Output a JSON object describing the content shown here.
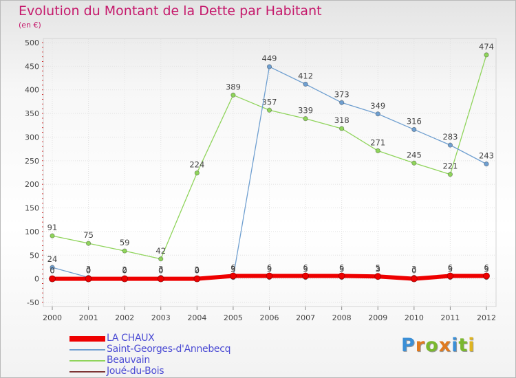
{
  "header": {
    "title": "Evolution du Montant de la Dette par Habitant",
    "subtitle": "(en €)"
  },
  "branding": {
    "logo_letters": [
      "P",
      "r",
      "o",
      "x",
      "i",
      "t",
      "i"
    ],
    "logo_colors": [
      "#3b8fd6",
      "#e07a1f",
      "#7ab82e",
      "#e07a1f",
      "#3b8fd6",
      "#7ab82e",
      "#e0b51f"
    ]
  },
  "chart_data": {
    "type": "line",
    "title": "Evolution du Montant de la Dette par Habitant",
    "ylabel": "(en €)",
    "xlabel": "",
    "x": [
      "2000",
      "2001",
      "2002",
      "2003",
      "2004",
      "2005",
      "2006",
      "2007",
      "2008",
      "2009",
      "2010",
      "2011",
      "2012"
    ],
    "ylim": [
      -50,
      500
    ],
    "yticks": [
      "-50",
      "0",
      "50",
      "100",
      "150",
      "200",
      "250",
      "300",
      "350",
      "400",
      "450",
      "500"
    ],
    "legend_position": "bottom-left",
    "series": [
      {
        "name": "Joué-du-Bois",
        "color": "#7d3535",
        "values": [
          0,
          0,
          0,
          0,
          0,
          3,
          3,
          3,
          3,
          3,
          3,
          3,
          3
        ],
        "labels": [
          "0",
          "0",
          "0",
          "0",
          "0",
          "3",
          "3",
          "3",
          "3",
          "3",
          "3",
          "3",
          "3"
        ]
      },
      {
        "name": "Beauvain",
        "color": "#8fd45b",
        "values": [
          91,
          75,
          59,
          42,
          224,
          389,
          357,
          339,
          318,
          271,
          245,
          221,
          474
        ],
        "labels": [
          "91",
          "75",
          "59",
          "42",
          "224",
          "389",
          "357",
          "339",
          "318",
          "271",
          "245",
          "221",
          "474"
        ]
      },
      {
        "name": "Saint-Georges-d'Annebecq",
        "color": "#6f9fd0",
        "values": [
          24,
          3,
          2,
          3,
          2,
          3,
          449,
          412,
          373,
          349,
          316,
          283,
          243
        ],
        "labels": [
          "24",
          "3",
          "2",
          "3",
          "2",
          "3",
          "449",
          "412",
          "373",
          "349",
          "316",
          "283",
          "243"
        ]
      },
      {
        "name": "LA CHAUX",
        "color": "#ee0000",
        "values": [
          0,
          0,
          0,
          0,
          0,
          6,
          6,
          6,
          6,
          5,
          0,
          6,
          6
        ],
        "labels": [
          "0",
          "0",
          "0",
          "0",
          "0",
          "6",
          "6",
          "6",
          "6",
          "5",
          "0",
          "6",
          "6"
        ]
      }
    ]
  }
}
